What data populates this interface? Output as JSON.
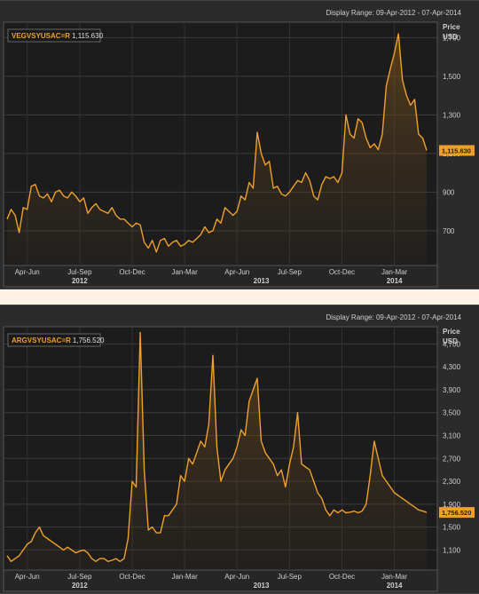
{
  "charts": [
    {
      "display_range": "Display Range: 09-Apr-2012 - 07-Apr-2014",
      "ylabel": "Price",
      "unit": "USD",
      "legend": {
        "symbol": "VEGVSYUSAC=R",
        "value": "1,115.630"
      },
      "last_value_label": "1,115.630"
    },
    {
      "display_range": "Display Range: 09-Apr-2012 - 07-Apr-2014",
      "ylabel": "Price",
      "unit": "USD",
      "legend": {
        "symbol": "ARGVSYUSAC=R",
        "value": "1,756.520"
      },
      "last_value_label": "1,756.520"
    }
  ],
  "chart_data": [
    {
      "type": "area",
      "series": [
        {
          "name": "VEGVSYUSAC=R",
          "color": "#f0a02a"
        }
      ],
      "x_start": 0,
      "x_end": 104,
      "x_ticks": [
        {
          "label": "Apr-Jun",
          "at": 5
        },
        {
          "label": "Jul-Sep",
          "at": 18
        },
        {
          "label": "Oct-Dec",
          "at": 31
        },
        {
          "label": "Jan-Mar",
          "at": 44
        },
        {
          "label": "Apr-Jun",
          "at": 57
        },
        {
          "label": "Jul-Sep",
          "at": 70
        },
        {
          "label": "Oct-Dec",
          "at": 83
        },
        {
          "label": "Jan-Mar",
          "at": 96
        }
      ],
      "years": [
        {
          "label": "2012",
          "at": 18
        },
        {
          "label": "2013",
          "at": 63
        },
        {
          "label": "2014",
          "at": 96
        }
      ],
      "ylim": [
        520,
        1780
      ],
      "y_ticks": [
        700,
        900,
        1100,
        1300,
        1500,
        1700
      ],
      "y_tick_labels": [
        "700",
        "900",
        "1,100",
        "1,300",
        "1,500",
        "1,700"
      ],
      "last_value": 1115.63,
      "points": [
        [
          0,
          760
        ],
        [
          1,
          810
        ],
        [
          2,
          780
        ],
        [
          3,
          690
        ],
        [
          4,
          820
        ],
        [
          5,
          810
        ],
        [
          6,
          930
        ],
        [
          7,
          940
        ],
        [
          8,
          880
        ],
        [
          9,
          870
        ],
        [
          10,
          890
        ],
        [
          11,
          850
        ],
        [
          12,
          900
        ],
        [
          13,
          910
        ],
        [
          14,
          880
        ],
        [
          15,
          870
        ],
        [
          16,
          900
        ],
        [
          17,
          880
        ],
        [
          18,
          850
        ],
        [
          19,
          870
        ],
        [
          20,
          790
        ],
        [
          21,
          820
        ],
        [
          22,
          840
        ],
        [
          23,
          810
        ],
        [
          24,
          800
        ],
        [
          25,
          790
        ],
        [
          26,
          820
        ],
        [
          27,
          780
        ],
        [
          28,
          760
        ],
        [
          29,
          760
        ],
        [
          30,
          740
        ],
        [
          31,
          720
        ],
        [
          32,
          740
        ],
        [
          33,
          730
        ],
        [
          34,
          640
        ],
        [
          35,
          610
        ],
        [
          36,
          650
        ],
        [
          37,
          590
        ],
        [
          38,
          650
        ],
        [
          39,
          660
        ],
        [
          40,
          620
        ],
        [
          41,
          640
        ],
        [
          42,
          650
        ],
        [
          43,
          620
        ],
        [
          44,
          630
        ],
        [
          45,
          650
        ],
        [
          46,
          640
        ],
        [
          47,
          660
        ],
        [
          48,
          680
        ],
        [
          49,
          720
        ],
        [
          50,
          690
        ],
        [
          51,
          700
        ],
        [
          52,
          760
        ],
        [
          53,
          740
        ],
        [
          54,
          820
        ],
        [
          55,
          800
        ],
        [
          56,
          780
        ],
        [
          57,
          800
        ],
        [
          58,
          880
        ],
        [
          59,
          860
        ],
        [
          60,
          950
        ],
        [
          61,
          920
        ],
        [
          62,
          1210
        ],
        [
          63,
          1100
        ],
        [
          64,
          1040
        ],
        [
          65,
          1060
        ],
        [
          66,
          920
        ],
        [
          67,
          930
        ],
        [
          68,
          890
        ],
        [
          69,
          880
        ],
        [
          70,
          900
        ],
        [
          71,
          930
        ],
        [
          72,
          960
        ],
        [
          73,
          950
        ],
        [
          74,
          1000
        ],
        [
          75,
          960
        ],
        [
          76,
          880
        ],
        [
          77,
          860
        ],
        [
          78,
          940
        ],
        [
          79,
          980
        ],
        [
          80,
          970
        ],
        [
          81,
          980
        ],
        [
          82,
          950
        ],
        [
          83,
          1000
        ],
        [
          84,
          1300
        ],
        [
          85,
          1200
        ],
        [
          86,
          1180
        ],
        [
          87,
          1280
        ],
        [
          88,
          1260
        ],
        [
          89,
          1180
        ],
        [
          90,
          1130
        ],
        [
          91,
          1150
        ],
        [
          92,
          1120
        ],
        [
          93,
          1200
        ],
        [
          94,
          1450
        ],
        [
          95,
          1540
        ],
        [
          96,
          1620
        ],
        [
          97,
          1720
        ],
        [
          98,
          1480
        ],
        [
          99,
          1400
        ],
        [
          100,
          1350
        ],
        [
          101,
          1380
        ],
        [
          102,
          1200
        ],
        [
          103,
          1180
        ],
        [
          104,
          1116
        ]
      ]
    },
    {
      "type": "area",
      "series": [
        {
          "name": "ARGVSYUSAC=R",
          "color": "#f0a02a"
        }
      ],
      "x_start": 0,
      "x_end": 104,
      "x_ticks": [
        {
          "label": "Apr-Jun",
          "at": 5
        },
        {
          "label": "Jul-Sep",
          "at": 18
        },
        {
          "label": "Oct-Dec",
          "at": 31
        },
        {
          "label": "Jan-Mar",
          "at": 44
        },
        {
          "label": "Apr-Jun",
          "at": 57
        },
        {
          "label": "Jul-Sep",
          "at": 70
        },
        {
          "label": "Oct-Dec",
          "at": 83
        },
        {
          "label": "Jan-Mar",
          "at": 96
        }
      ],
      "years": [
        {
          "label": "2012",
          "at": 18
        },
        {
          "label": "2013",
          "at": 63
        },
        {
          "label": "2014",
          "at": 96
        }
      ],
      "ylim": [
        750,
        5000
      ],
      "y_ticks": [
        1100,
        1500,
        1900,
        2300,
        2700,
        3100,
        3500,
        3900,
        4300,
        4700
      ],
      "y_tick_labels": [
        "1,100",
        "1,500",
        "1,900",
        "2,300",
        "2,700",
        "3,100",
        "3,500",
        "3,900",
        "4,300",
        "4,700"
      ],
      "last_value": 1756.52,
      "points": [
        [
          0,
          1000
        ],
        [
          1,
          900
        ],
        [
          2,
          950
        ],
        [
          3,
          1000
        ],
        [
          4,
          1100
        ],
        [
          5,
          1200
        ],
        [
          6,
          1250
        ],
        [
          7,
          1400
        ],
        [
          8,
          1500
        ],
        [
          9,
          1350
        ],
        [
          10,
          1300
        ],
        [
          11,
          1250
        ],
        [
          12,
          1200
        ],
        [
          13,
          1150
        ],
        [
          14,
          1100
        ],
        [
          15,
          1150
        ],
        [
          16,
          1100
        ],
        [
          17,
          1050
        ],
        [
          18,
          1080
        ],
        [
          19,
          1100
        ],
        [
          20,
          1050
        ],
        [
          21,
          950
        ],
        [
          22,
          900
        ],
        [
          23,
          950
        ],
        [
          24,
          950
        ],
        [
          25,
          900
        ],
        [
          26,
          920
        ],
        [
          27,
          950
        ],
        [
          28,
          900
        ],
        [
          29,
          950
        ],
        [
          30,
          1300
        ],
        [
          31,
          2300
        ],
        [
          32,
          2200
        ],
        [
          33,
          4900
        ],
        [
          34,
          2500
        ],
        [
          35,
          1450
        ],
        [
          36,
          1500
        ],
        [
          37,
          1400
        ],
        [
          38,
          1400
        ],
        [
          39,
          1700
        ],
        [
          40,
          1700
        ],
        [
          41,
          1800
        ],
        [
          42,
          1900
        ],
        [
          43,
          2400
        ],
        [
          44,
          2300
        ],
        [
          45,
          2700
        ],
        [
          46,
          2600
        ],
        [
          47,
          2800
        ],
        [
          48,
          3000
        ],
        [
          49,
          2900
        ],
        [
          50,
          3300
        ],
        [
          51,
          4500
        ],
        [
          52,
          2900
        ],
        [
          53,
          2300
        ],
        [
          54,
          2500
        ],
        [
          55,
          2600
        ],
        [
          56,
          2700
        ],
        [
          57,
          2900
        ],
        [
          58,
          3200
        ],
        [
          59,
          3100
        ],
        [
          60,
          3700
        ],
        [
          61,
          3900
        ],
        [
          62,
          4100
        ],
        [
          63,
          3000
        ],
        [
          64,
          2800
        ],
        [
          65,
          2700
        ],
        [
          66,
          2600
        ],
        [
          67,
          2400
        ],
        [
          68,
          2500
        ],
        [
          69,
          2200
        ],
        [
          70,
          2600
        ],
        [
          71,
          2900
        ],
        [
          72,
          3500
        ],
        [
          73,
          2600
        ],
        [
          74,
          2550
        ],
        [
          75,
          2500
        ],
        [
          76,
          2300
        ],
        [
          77,
          2100
        ],
        [
          78,
          2000
        ],
        [
          79,
          1800
        ],
        [
          80,
          1700
        ],
        [
          81,
          1800
        ],
        [
          82,
          1750
        ],
        [
          83,
          1800
        ],
        [
          84,
          1750
        ],
        [
          85,
          1760
        ],
        [
          86,
          1780
        ],
        [
          87,
          1750
        ],
        [
          88,
          1780
        ],
        [
          89,
          1900
        ],
        [
          90,
          2400
        ],
        [
          91,
          3000
        ],
        [
          92,
          2700
        ],
        [
          93,
          2400
        ],
        [
          94,
          2300
        ],
        [
          95,
          2200
        ],
        [
          96,
          2100
        ],
        [
          97,
          2050
        ],
        [
          98,
          2000
        ],
        [
          99,
          1950
        ],
        [
          100,
          1900
        ],
        [
          101,
          1850
        ],
        [
          102,
          1800
        ],
        [
          103,
          1780
        ],
        [
          104,
          1757
        ]
      ]
    }
  ]
}
